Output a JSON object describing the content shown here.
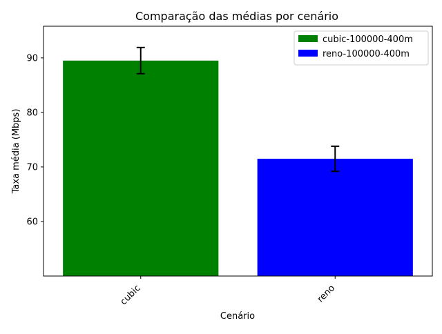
{
  "chart_data": {
    "type": "bar",
    "title": "Comparação das médias por cenário",
    "xlabel": "Cenário",
    "ylabel": "Taxa média (Mbps)",
    "categories": [
      "cubic",
      "reno"
    ],
    "values": [
      89.5,
      71.5
    ],
    "errors": [
      2.4,
      2.3
    ],
    "ylim": [
      50,
      95.8
    ],
    "yticks": [
      60,
      70,
      80,
      90
    ],
    "colors": [
      "#008000",
      "#0000ff"
    ],
    "legend": {
      "position": "top-right",
      "entries": [
        {
          "label": "cubic-100000-400m",
          "color": "#008000"
        },
        {
          "label": "reno-100000-400m",
          "color": "#0000ff"
        }
      ]
    },
    "grid": false,
    "xtick_rotation": 45
  }
}
